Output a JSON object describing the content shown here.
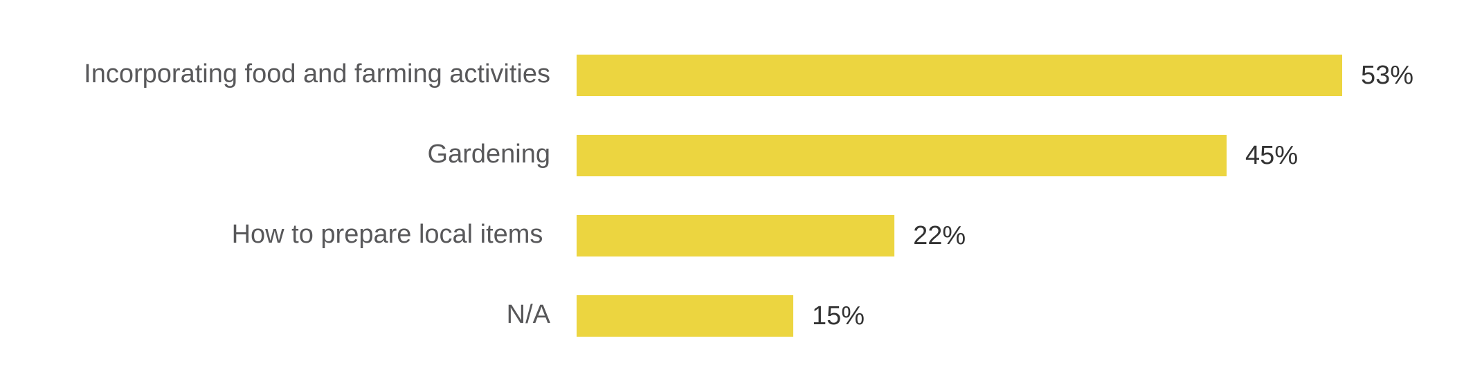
{
  "chart_data": {
    "type": "bar",
    "orientation": "horizontal",
    "categories": [
      "Incorporating food and farming activities",
      "Gardening",
      "How to prepare local items ",
      "N/A"
    ],
    "values": [
      53,
      45,
      22,
      15
    ],
    "value_labels": [
      "53%",
      "45%",
      "22%",
      "15%"
    ],
    "color": "#ecd540"
  }
}
